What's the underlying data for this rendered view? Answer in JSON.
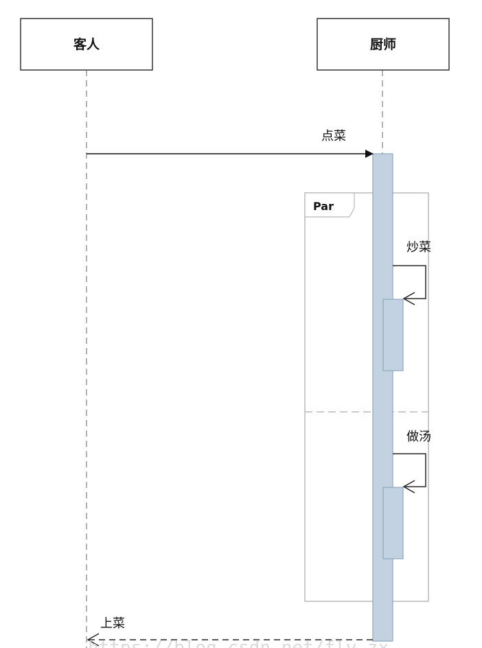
{
  "participants": [
    {
      "id": "guest",
      "label": "客人"
    },
    {
      "id": "chef",
      "label": "厨师"
    }
  ],
  "messages": {
    "order": "点菜",
    "stir_fry": "炒菜",
    "make_soup": "做汤",
    "serve": "上菜"
  },
  "fragment": {
    "operator": "Par"
  },
  "watermark": "https://blog.csdn.net/fly_zx",
  "colors": {
    "line": "#222222",
    "lifeline": "#9a9a9a",
    "activation_fill": "#c2d2e0",
    "activation_stroke": "#8ea6bd",
    "frame_stroke": "#b8b8b8"
  }
}
